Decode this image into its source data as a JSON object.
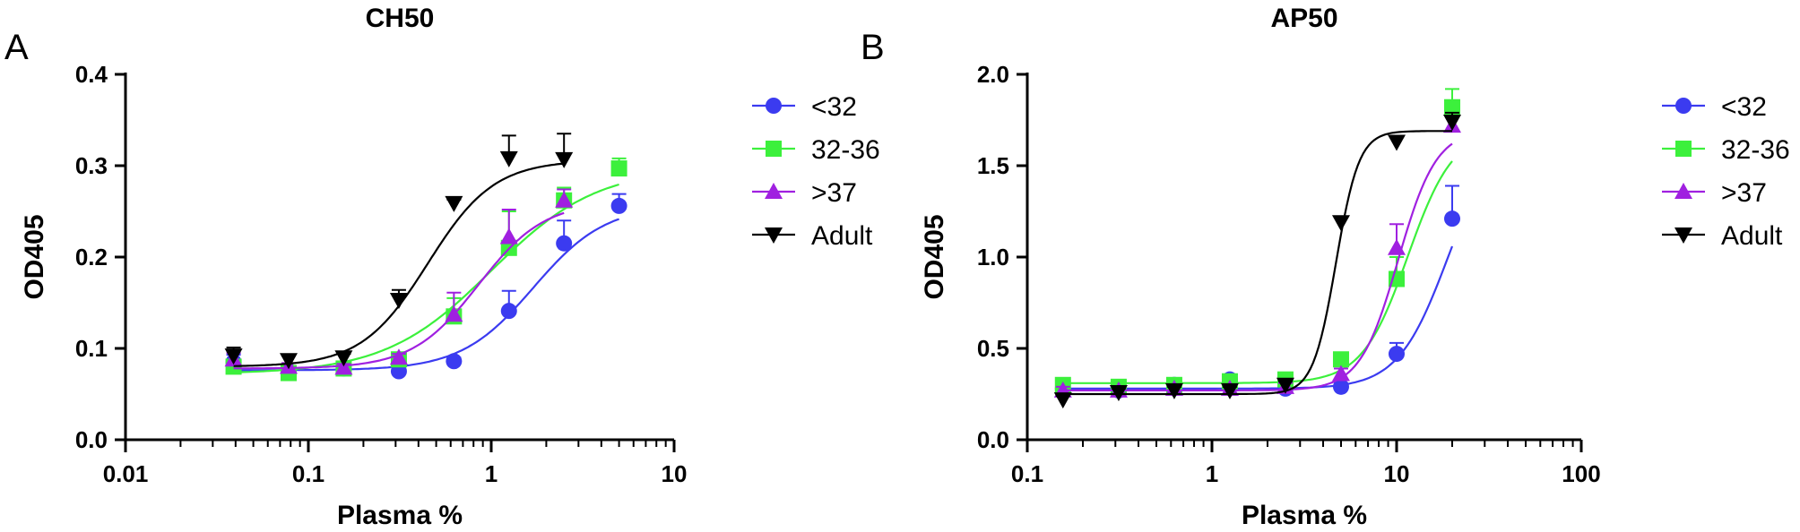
{
  "chart_data": [
    {
      "type": "scatter",
      "panel_label": "A",
      "title": "CH50",
      "xlabel": "Plasma %",
      "ylabel": "OD405",
      "x_scale": "log",
      "xlim": [
        0.01,
        10
      ],
      "ylim": [
        0,
        0.4
      ],
      "x_ticks": [
        0.01,
        0.1,
        1,
        10
      ],
      "x_tick_labels": [
        "0.01",
        "0.1",
        "1",
        "10"
      ],
      "y_ticks": [
        0,
        0.1,
        0.2,
        0.3,
        0.4
      ],
      "y_tick_labels": [
        "0.0",
        "0.1",
        "0.2",
        "0.3",
        "0.4"
      ],
      "legend_position": "right",
      "series": [
        {
          "name": "<32",
          "color": "#3b3bf0",
          "marker": "circle",
          "x": [
            0.039,
            0.078,
            0.156,
            0.3125,
            0.625,
            1.25,
            2.5,
            5
          ],
          "y": [
            0.085,
            0.075,
            0.078,
            0.075,
            0.086,
            0.141,
            0.215,
            0.256
          ],
          "err": [
            0.008,
            0.004,
            0.004,
            0.003,
            0.004,
            0.022,
            0.025,
            0.013
          ],
          "fit": {
            "bottom": 0.076,
            "top": 0.257,
            "ec50": 1.7,
            "hill": 2.2
          }
        },
        {
          "name": "32-36",
          "color": "#3cf03c",
          "marker": "square",
          "x": [
            0.039,
            0.078,
            0.156,
            0.3125,
            0.625,
            1.25,
            2.5,
            5
          ],
          "y": [
            0.08,
            0.073,
            0.078,
            0.088,
            0.135,
            0.21,
            0.262,
            0.297
          ],
          "err": [
            0.006,
            0.004,
            0.004,
            0.004,
            0.02,
            0.04,
            0.014,
            0.011
          ],
          "fit": {
            "bottom": 0.072,
            "top": 0.298,
            "ec50": 1.0,
            "hill": 1.5
          }
        },
        {
          "name": ">37",
          "color": "#a020e0",
          "marker": "triangle-up",
          "x": [
            0.039,
            0.078,
            0.156,
            0.3125,
            0.625,
            1.25,
            2.5
          ],
          "y": [
            0.088,
            0.08,
            0.079,
            0.09,
            0.137,
            0.222,
            0.262
          ],
          "err": [
            0.007,
            0.004,
            0.004,
            0.004,
            0.024,
            0.03,
            0.012
          ],
          "fit": {
            "bottom": 0.078,
            "top": 0.261,
            "ec50": 0.85,
            "hill": 2.4
          }
        },
        {
          "name": "Adult",
          "color": "#000000",
          "marker": "triangle-down",
          "x": [
            0.039,
            0.078,
            0.156,
            0.3125,
            0.625,
            1.25,
            2.5
          ],
          "y": [
            0.092,
            0.087,
            0.09,
            0.153,
            0.259,
            0.308,
            0.307
          ],
          "err": [
            0.009,
            0.005,
            0.004,
            0.011,
            0.004,
            0.025,
            0.028
          ],
          "fit": {
            "bottom": 0.08,
            "top": 0.306,
            "ec50": 0.45,
            "hill": 2.4
          }
        }
      ]
    },
    {
      "type": "scatter",
      "panel_label": "B",
      "title": "AP50",
      "xlabel": "Plasma %",
      "ylabel": "OD405",
      "x_scale": "log",
      "xlim": [
        0.1,
        100
      ],
      "ylim": [
        0,
        2.0
      ],
      "x_ticks": [
        0.1,
        1,
        10,
        100
      ],
      "x_tick_labels": [
        "0.1",
        "1",
        "10",
        "100"
      ],
      "y_ticks": [
        0,
        0.5,
        1.0,
        1.5,
        2.0
      ],
      "y_tick_labels": [
        "0.0",
        "0.5",
        "1.0",
        "1.5",
        "2.0"
      ],
      "legend_position": "right",
      "series": [
        {
          "name": "<32",
          "color": "#3b3bf0",
          "marker": "circle",
          "x": [
            0.156,
            0.3125,
            0.625,
            1.25,
            2.5,
            5,
            10,
            20
          ],
          "y": [
            0.28,
            0.27,
            0.3,
            0.33,
            0.28,
            0.29,
            0.47,
            1.21
          ],
          "err": [
            0.02,
            0.02,
            0.02,
            0.02,
            0.02,
            0.02,
            0.06,
            0.18
          ],
          "fit": {
            "bottom": 0.28,
            "top": 1.72,
            "ec50": 19,
            "hill": 3.2
          }
        },
        {
          "name": "32-36",
          "color": "#3cf03c",
          "marker": "square",
          "x": [
            0.156,
            0.3125,
            0.625,
            1.25,
            2.5,
            5,
            10,
            20
          ],
          "y": [
            0.3,
            0.29,
            0.3,
            0.32,
            0.33,
            0.44,
            0.88,
            1.82
          ],
          "err": [
            0.02,
            0.02,
            0.02,
            0.02,
            0.02,
            0.03,
            0.12,
            0.1
          ],
          "fit": {
            "bottom": 0.31,
            "top": 1.7,
            "ec50": 11.5,
            "hill": 3.5
          }
        },
        {
          "name": ">37",
          "color": "#a020e0",
          "marker": "triangle-up",
          "x": [
            0.156,
            0.3125,
            0.625,
            1.25,
            2.5,
            5,
            10,
            20
          ],
          "y": [
            0.27,
            0.27,
            0.28,
            0.28,
            0.29,
            0.36,
            1.05,
            1.72
          ],
          "err": [
            0.02,
            0.02,
            0.02,
            0.02,
            0.02,
            0.03,
            0.13,
            0.05
          ],
          "fit": {
            "bottom": 0.27,
            "top": 1.7,
            "ec50": 10.2,
            "hill": 4.2
          }
        },
        {
          "name": "Adult",
          "color": "#000000",
          "marker": "triangle-down",
          "x": [
            0.156,
            0.3125,
            0.625,
            1.25,
            2.5,
            5,
            10,
            20
          ],
          "y": [
            0.22,
            0.26,
            0.27,
            0.27,
            0.3,
            1.19,
            1.63,
            1.74
          ],
          "err": [
            0.02,
            0.02,
            0.02,
            0.02,
            0.02,
            0.03,
            0.03,
            0.05
          ],
          "fit": {
            "bottom": 0.25,
            "top": 1.69,
            "ec50": 4.7,
            "hill": 7
          }
        }
      ]
    }
  ]
}
